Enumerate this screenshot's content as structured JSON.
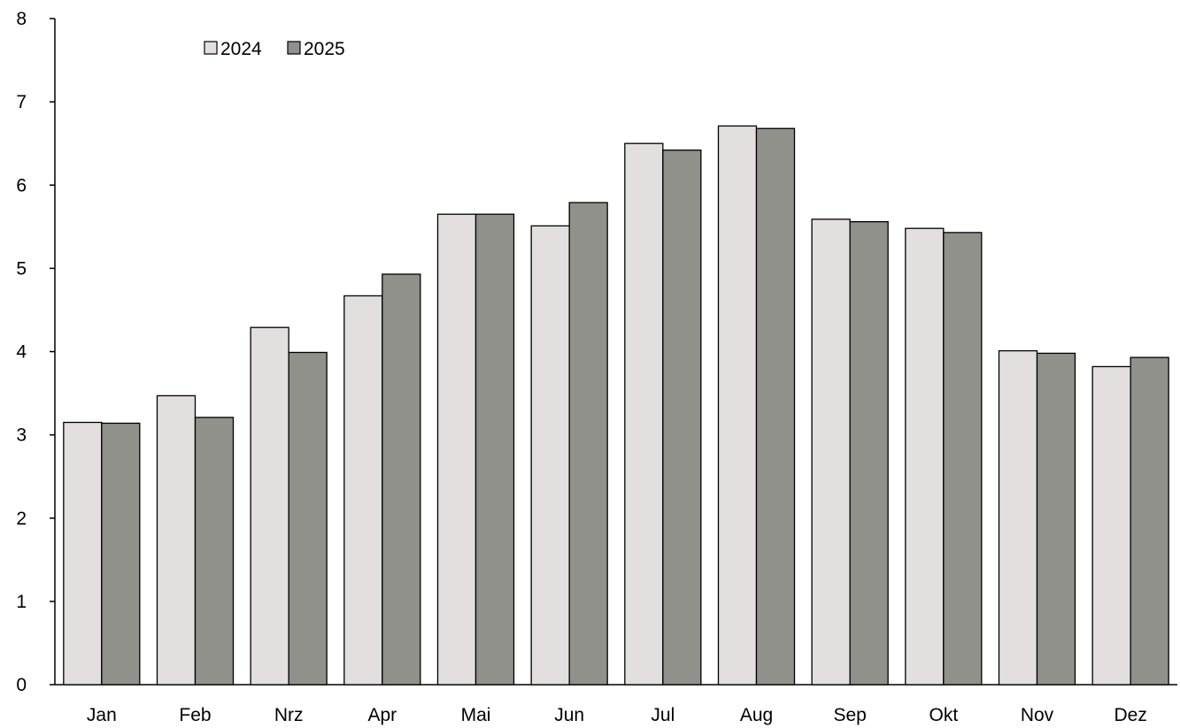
{
  "chart_data": {
    "type": "bar",
    "categories": [
      "Jan",
      "Feb",
      "Nrz",
      "Apr",
      "Mai",
      "Jun",
      "Jul",
      "Aug",
      "Sep",
      "Okt",
      "Nov",
      "Dez"
    ],
    "series": [
      {
        "name": "2024",
        "color": "#e4dfdf",
        "values": [
          3.15,
          3.47,
          4.29,
          4.67,
          5.65,
          5.51,
          6.5,
          6.71,
          5.59,
          5.48,
          4.01,
          3.82
        ]
      },
      {
        "name": "2025",
        "color": "#8f918a",
        "values": [
          3.14,
          3.21,
          3.99,
          4.93,
          5.65,
          5.79,
          6.42,
          6.68,
          5.56,
          5.43,
          3.98,
          3.93
        ]
      }
    ],
    "title": "",
    "xlabel": "",
    "ylabel": "",
    "ylim": [
      0,
      8
    ],
    "yticks": [
      0,
      1,
      2,
      3,
      4,
      5,
      6,
      7,
      8
    ],
    "grid": false,
    "legend_position": "top-left"
  }
}
